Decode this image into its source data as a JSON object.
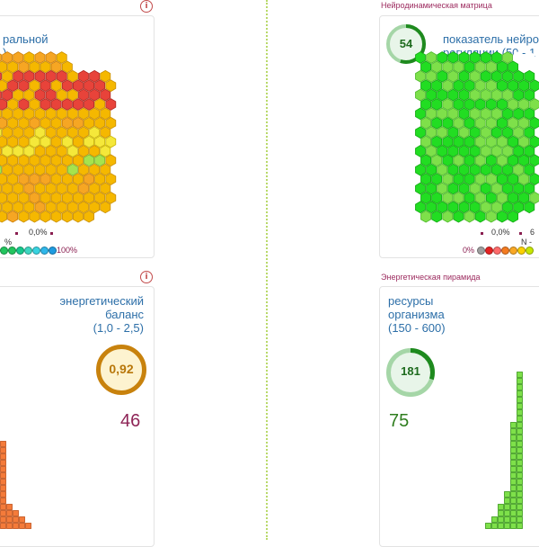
{
  "left_top": {
    "title_lines": [
      "ральной",
      ")"
    ],
    "stat_values": [
      "0,0%"
    ],
    "percent_mark": "%",
    "scale_end_label": "100%",
    "scale_colors": [
      "#22c55e",
      "#22c55e",
      "#16c98d",
      "#3dd6c0",
      "#38d3e0",
      "#2fb7ea",
      "#1e9be0"
    ]
  },
  "right_top": {
    "caption": "Нейродинамическая матрица",
    "ring_value": "54",
    "title_lines": [
      "показатель нейро",
      "регуляции (50 - 1"
    ],
    "stat_values": [
      "0,0%",
      "6"
    ],
    "scale_start_label": "0%",
    "scale_marker": "N -",
    "scale_colors": [
      "#9e9e9e",
      "#e52222",
      "#ff6b6b",
      "#f47b20",
      "#f9a825",
      "#fbd000",
      "#c6e600"
    ]
  },
  "left_bottom": {
    "title_lines": [
      "энергетический",
      "баланс",
      "(1,0 - 2,5)"
    ],
    "ring_value": "0,92",
    "big_number": "46"
  },
  "right_bottom": {
    "caption": "Энергетическая пирамида",
    "title_lines": [
      "ресурсы",
      "организма",
      "(150 - 600)"
    ],
    "ring_value": "181",
    "big_number": "75"
  },
  "colors": {
    "title_blue": "#2d6fa8",
    "caption_purple": "#9c2a5e",
    "ring_orange": "#c8820d",
    "ring_green": "#1e8a1e",
    "big_number_orange": "#8e2456",
    "big_number_green": "#2e7d1e"
  },
  "icons": [
    "info-icon"
  ]
}
